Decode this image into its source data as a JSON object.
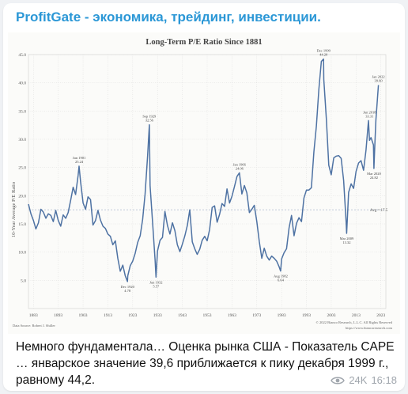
{
  "channel": {
    "name": "ProfitGate - экономика, трейдинг, инвестиции."
  },
  "message": {
    "text": "Немного фундаментала… Оценка рынка США - Показатель CAPE … январское значение 39,6 приближается к пику декабря 1999 г., равному 44,2.",
    "views": "24K",
    "time": "16:18"
  },
  "colors": {
    "line": "#4e72a3",
    "channel": "#2b97d6",
    "grid": "#dcdcdc"
  },
  "icons": {
    "views": "eye-icon"
  },
  "chart_data": {
    "type": "line",
    "title": "Long-Term P/E Ratio Since 1881",
    "ylabel": "10-Year Average P/E Ratio",
    "xlabel": "",
    "ylim": [
      0,
      45
    ],
    "xlim": [
      1881,
      2025
    ],
    "grid": true,
    "y_ticks": [
      "5.0",
      "10.0",
      "15.0",
      "20.0",
      "25.0",
      "30.0",
      "35.0",
      "40.0",
      "45.0"
    ],
    "x_ticks": [
      "1883",
      "1893",
      "1903",
      "1913",
      "1923",
      "1933",
      "1943",
      "1953",
      "1963",
      "1973",
      "1983",
      "1993",
      "2003",
      "2013",
      "2023"
    ],
    "source": "Data Source: Robert J. Shiller",
    "copyright": "© 2022 Bianco Research, L.L.C. All Rights Reserved",
    "url": "https://www.biancoresearch.com",
    "average_label": "Avg = 17.5",
    "average": 17.5,
    "annotations": [
      {
        "label": "Jun 1901",
        "value": "25.24",
        "x": 1901.4,
        "y": 25.24
      },
      {
        "label": "Sep 1929",
        "value": "32.56",
        "x": 1929.7,
        "y": 32.56
      },
      {
        "label": "Dec 1920",
        "value": "4.78",
        "x": 1920.9,
        "y": 4.78
      },
      {
        "label": "Jun 1932",
        "value": "5.57",
        "x": 1932.4,
        "y": 5.57
      },
      {
        "label": "Jan 1966",
        "value": "24.06",
        "x": 1966.0,
        "y": 24.06
      },
      {
        "label": "Aug 1982",
        "value": "6.64",
        "x": 1982.6,
        "y": 6.64
      },
      {
        "label": "Dec 1999",
        "value": "44.20",
        "x": 1999.9,
        "y": 44.2
      },
      {
        "label": "Jun 2018",
        "value": "33.31",
        "x": 2018.4,
        "y": 33.31
      },
      {
        "label": "Mar 2009",
        "value": "13.32",
        "x": 2009.2,
        "y": 13.32
      },
      {
        "label": "Mar 2020",
        "value": "24.82",
        "x": 2020.2,
        "y": 24.82
      },
      {
        "label": "Jan 2022",
        "value": "39.60",
        "x": 2022.0,
        "y": 39.6
      }
    ],
    "series": [
      {
        "x": [
          1881,
          1882,
          1883,
          1884,
          1885,
          1886,
          1887,
          1888,
          1889,
          1890,
          1891,
          1892,
          1893,
          1894,
          1895,
          1896,
          1897,
          1898,
          1899,
          1900,
          1901,
          1901.4,
          1902,
          1903,
          1904,
          1905,
          1906,
          1907,
          1908,
          1909,
          1910,
          1911,
          1912,
          1913,
          1914,
          1915,
          1916,
          1917,
          1918,
          1919,
          1920,
          1920.9,
          1921,
          1922,
          1923,
          1924,
          1925,
          1926,
          1927,
          1928,
          1929,
          1929.7,
          1930,
          1931,
          1932,
          1932.4,
          1933,
          1934,
          1935,
          1936,
          1937,
          1938,
          1939,
          1940,
          1941,
          1942,
          1943,
          1944,
          1945,
          1946,
          1947,
          1948,
          1949,
          1950,
          1951,
          1952,
          1953,
          1954,
          1955,
          1956,
          1957,
          1958,
          1959,
          1960,
          1961,
          1962,
          1963,
          1964,
          1965,
          1966,
          1967,
          1968,
          1969,
          1970,
          1971,
          1972,
          1973,
          1974,
          1975,
          1976,
          1977,
          1978,
          1979,
          1980,
          1981,
          1982,
          1982.6,
          1983,
          1984,
          1985,
          1986,
          1987,
          1988,
          1989,
          1990,
          1991,
          1992,
          1993,
          1994,
          1995,
          1996,
          1997,
          1998,
          1999,
          1999.9,
          2000,
          2001,
          2002,
          2003,
          2004,
          2005,
          2006,
          2007,
          2008,
          2009,
          2009.2,
          2010,
          2011,
          2012,
          2013,
          2014,
          2015,
          2016,
          2017,
          2018,
          2018.4,
          2019,
          2020,
          2020.2,
          2020.6,
          2021,
          2022
        ],
        "y": [
          18.5,
          16.8,
          15.6,
          14.1,
          15.2,
          17.6,
          17.1,
          16.0,
          16.8,
          16.5,
          15.4,
          17.4,
          15.6,
          14.6,
          16.6,
          16.0,
          17.0,
          19.2,
          21.5,
          20.2,
          23.6,
          25.24,
          22.5,
          18.7,
          17.6,
          19.8,
          19.3,
          14.8,
          15.6,
          17.4,
          15.7,
          14.6,
          14.2,
          13.2,
          12.8,
          11.3,
          12.0,
          8.9,
          6.6,
          7.7,
          5.8,
          4.78,
          5.8,
          7.6,
          8.4,
          9.8,
          11.7,
          12.9,
          15.8,
          20.3,
          27.1,
          32.56,
          21.8,
          15.4,
          8.7,
          5.57,
          10.2,
          12.1,
          12.6,
          17.2,
          14.7,
          13.2,
          15.2,
          13.8,
          11.3,
          10.1,
          11.4,
          12.9,
          14.7,
          17.5,
          11.8,
          10.6,
          9.6,
          10.5,
          12.1,
          12.8,
          12.0,
          14.0,
          17.9,
          18.2,
          15.3,
          16.7,
          18.6,
          18.1,
          21.2,
          18.7,
          19.9,
          21.6,
          23.4,
          24.06,
          20.3,
          21.8,
          20.5,
          17.0,
          17.6,
          18.3,
          15.4,
          11.9,
          8.9,
          10.7,
          9.3,
          8.6,
          9.3,
          8.9,
          8.4,
          7.4,
          6.64,
          8.8,
          9.9,
          10.6,
          14.3,
          16.5,
          12.9,
          15.1,
          16.1,
          15.4,
          19.6,
          21.0,
          21.0,
          21.4,
          27.8,
          32.3,
          38.9,
          43.8,
          44.2,
          40.6,
          33.7,
          25.4,
          23.7,
          26.7,
          27.0,
          27.1,
          26.6,
          22.7,
          15.2,
          13.32,
          20.6,
          22.1,
          21.3,
          24.3,
          25.8,
          26.2,
          24.5,
          28.1,
          33.31,
          29.8,
          30.3,
          29.0,
          24.82,
          29.5,
          33.4,
          39.6
        ]
      }
    ]
  }
}
